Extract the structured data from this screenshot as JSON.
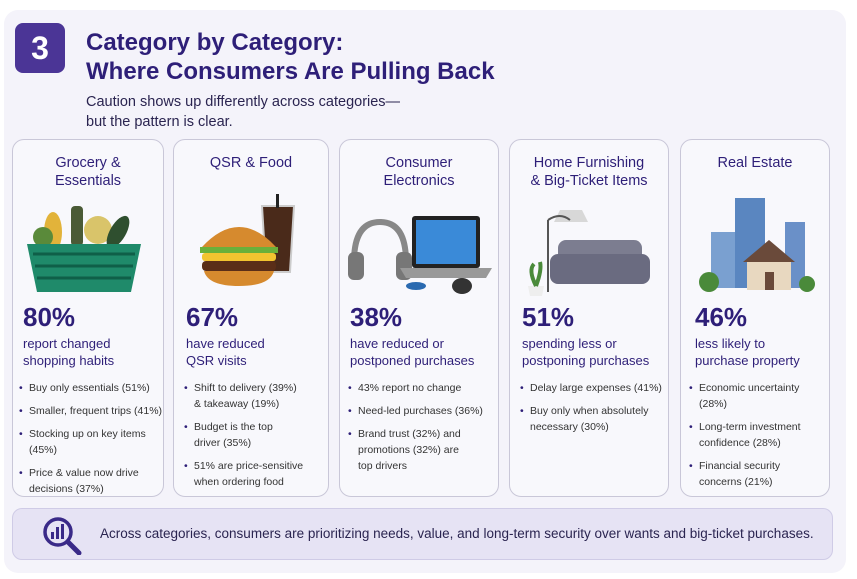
{
  "section_number": "3",
  "title_line1": "Category by Category:",
  "title_line2": "Where Consumers Are Pulling Back",
  "subtitle_line1": "Caution shows up differently across categories—",
  "subtitle_line2": "but the pattern is clear.",
  "colors": {
    "accent": "#2e1f78",
    "badge": "#4b3596",
    "panel": "#f4f3fa",
    "footer": "#e6e3f4"
  },
  "cards": [
    {
      "title": "Grocery &\nEssentials",
      "icon": "grocery-basket-icon",
      "percent": "80%",
      "desc_line1": "report changed",
      "desc_line2": "shopping habits",
      "bullets": [
        "Buy only essentials (51%)",
        "Smaller, frequent trips (41%)",
        "Stocking up on key items (45%)",
        "Price & value now drive\ndecisions (37%)"
      ]
    },
    {
      "title": "QSR & Food",
      "icon": "burger-drink-icon",
      "percent": "67%",
      "desc_line1": "have reduced",
      "desc_line2": "QSR visits",
      "bullets": [
        "Shift to delivery (39%)\n& takeaway (19%)",
        "Budget is the top\ndriver (35%)",
        "51% are price-sensitive\nwhen ordering food"
      ]
    },
    {
      "title": "Consumer\nElectronics",
      "icon": "headphones-laptop-icon",
      "percent": "38%",
      "desc_line1": "have reduced or",
      "desc_line2": "postponed purchases",
      "bullets": [
        "43% report no change",
        "Need-led purchases (36%)",
        "Brand trust (32%) and\npromotions (32%) are\ntop drivers"
      ]
    },
    {
      "title": "Home Furnishing\n& Big-Ticket Items",
      "icon": "sofa-lamp-icon",
      "percent": "51%",
      "desc_line1": "spending less or",
      "desc_line2": "postponing purchases",
      "bullets": [
        "Delay large expenses (41%)",
        "Buy only when absolutely\nnecessary (30%)"
      ]
    },
    {
      "title": "Real Estate",
      "icon": "buildings-house-icon",
      "percent": "46%",
      "desc_line1": "less likely to",
      "desc_line2": "purchase property",
      "bullets": [
        "Economic uncertainty (28%)",
        "Long-term investment\nconfidence (28%)",
        "Financial security\nconcerns (21%)"
      ]
    }
  ],
  "footer": {
    "icon": "magnifier-chart-icon",
    "text": "Across categories, consumers are prioritizing needs, value, and long-term security over wants and big-ticket purchases."
  }
}
